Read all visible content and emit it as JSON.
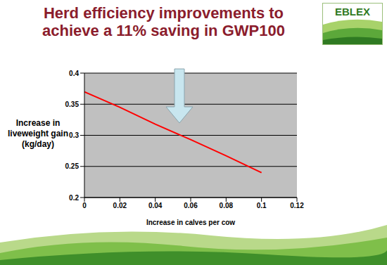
{
  "chart_data": {
    "type": "line",
    "title": "Herd efficiency improvements to achieve a 11% saving in GWP100",
    "logo_text": "EBLEX",
    "x_label": "Increase in calves per cow",
    "y_label": "Increase in liveweight gain (kg/day)",
    "x": [
      0,
      0.02,
      0.04,
      0.06,
      0.08,
      0.1
    ],
    "values": [
      0.37,
      0.345,
      0.318,
      0.293,
      0.267,
      0.24
    ],
    "color": "#ff0000",
    "xlim": [
      0,
      0.12
    ],
    "xticks": [
      0,
      0.02,
      0.04,
      0.06,
      0.08,
      0.1,
      0.12
    ],
    "ylim": [
      0.2,
      0.4
    ],
    "yticks": [
      0.2,
      0.25,
      0.3,
      0.35,
      0.4
    ],
    "grid": true
  }
}
